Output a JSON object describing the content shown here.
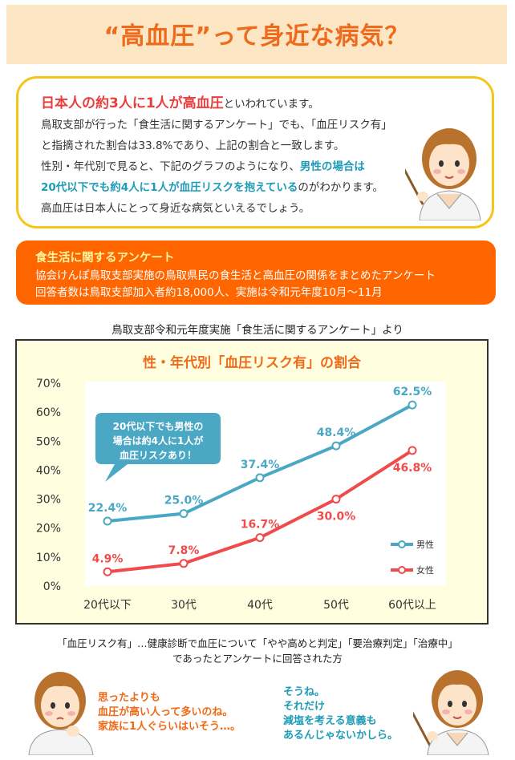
{
  "header": {
    "title": "“高血圧”って身近な病気？"
  },
  "intro": {
    "line1_highlight": "日本人の約3人に1人が高血圧",
    "line1_rest": "といわれています。",
    "line2": "鳥取支部が行った「食生活に関するアンケート」でも、「血圧リスク有」",
    "line3": "と指摘された割合は33.8%であり、上記の割合と一致します。",
    "line4_a": "性別・年代別で見ると、下記のグラフのようになり、",
    "line4_b": "男性の場合は",
    "line5_a": "20代以下でも約4人に1人が血圧リスクを抱えている",
    "line5_b": "のがわかります。",
    "line6": "高血圧は日本人にとって身近な病気といえるでしょう。"
  },
  "survey": {
    "title": "食生活に関するアンケート",
    "line1": "協会けんぽ鳥取支部実施の鳥取県民の食生活と高血圧の関係をまとめたアンケート",
    "line2": "回答者数は鳥取支部加入者約18,000人、実施は令和元年度10月～11月"
  },
  "source": "鳥取支部令和元年度実施「食生活に関するアンケート」より",
  "chart_data": {
    "type": "line",
    "title": "性・年代別「血圧リスク有」の割合",
    "categories": [
      "20代以下",
      "30代",
      "40代",
      "50代",
      "60代以上"
    ],
    "yticks": [
      "0%",
      "10%",
      "20%",
      "30%",
      "40%",
      "50%",
      "60%",
      "70%"
    ],
    "ylim": [
      0,
      70
    ],
    "series": [
      {
        "name": "男性",
        "values": [
          22.4,
          25.0,
          37.4,
          48.4,
          62.5
        ],
        "labels": [
          "22.4%",
          "25.0%",
          "37.4%",
          "48.4%",
          "62.5%"
        ],
        "color": "#4aa8c4"
      },
      {
        "name": "女性",
        "values": [
          4.9,
          7.8,
          16.7,
          30.0,
          46.8
        ],
        "labels": [
          "4.9%",
          "7.8%",
          "16.7%",
          "30.0%",
          "46.8%"
        ],
        "color": "#f04b4b"
      }
    ],
    "callout": [
      "20代以下でも男性の",
      "場合は約4人に1人が",
      "血圧リスクあり！"
    ],
    "legend_position": "bottom-right",
    "grid": false
  },
  "notes": {
    "line1": "「血圧リスク有」…健康診断で血圧について「やや高めと判定」「要治療判定」「治療中」",
    "line2": "であったとアンケートに回答された方"
  },
  "speech_left": [
    "思ったよりも",
    "血圧が高い人って多いのね。",
    "家族に1人ぐらいはいそう…。"
  ],
  "speech_right": [
    "そうね。",
    "それだけ",
    "減塩を考える意義も",
    "あるんじゃないかしら。"
  ]
}
